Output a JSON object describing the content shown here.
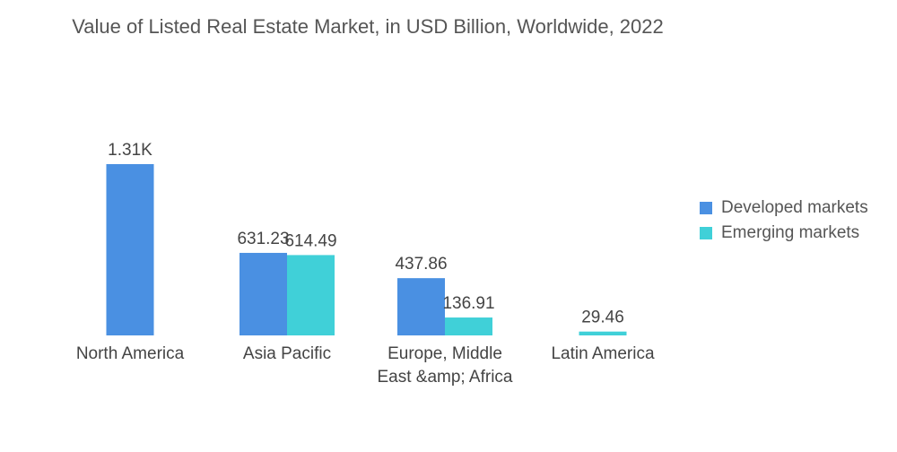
{
  "chart_data": {
    "type": "bar",
    "title": "Value of Listed Real Estate Market, in USD Billion, Worldwide, 2022",
    "xlabel": "",
    "ylabel": "",
    "categories": [
      "North America",
      "Asia Pacific",
      "Europe, Middle East &amp; Africa",
      "Latin America"
    ],
    "category_lines": [
      [
        "North America"
      ],
      [
        "Asia Pacific"
      ],
      [
        "Europe, Middle",
        "East &amp; Africa"
      ],
      [
        "Latin America"
      ]
    ],
    "series": [
      {
        "name": "Developed markets",
        "color": "#4a90e2",
        "values": [
          1310,
          631.23,
          437.86,
          null
        ],
        "labels": [
          "1.31K",
          "631.23",
          "437.86",
          ""
        ]
      },
      {
        "name": "Emerging markets",
        "color": "#40d0d8",
        "values": [
          null,
          614.49,
          136.91,
          29.46
        ],
        "labels": [
          "",
          "614.49",
          "136.91",
          "29.46"
        ]
      }
    ],
    "ylim": [
      0,
      1310
    ],
    "grid": false,
    "legend_position": "right"
  }
}
